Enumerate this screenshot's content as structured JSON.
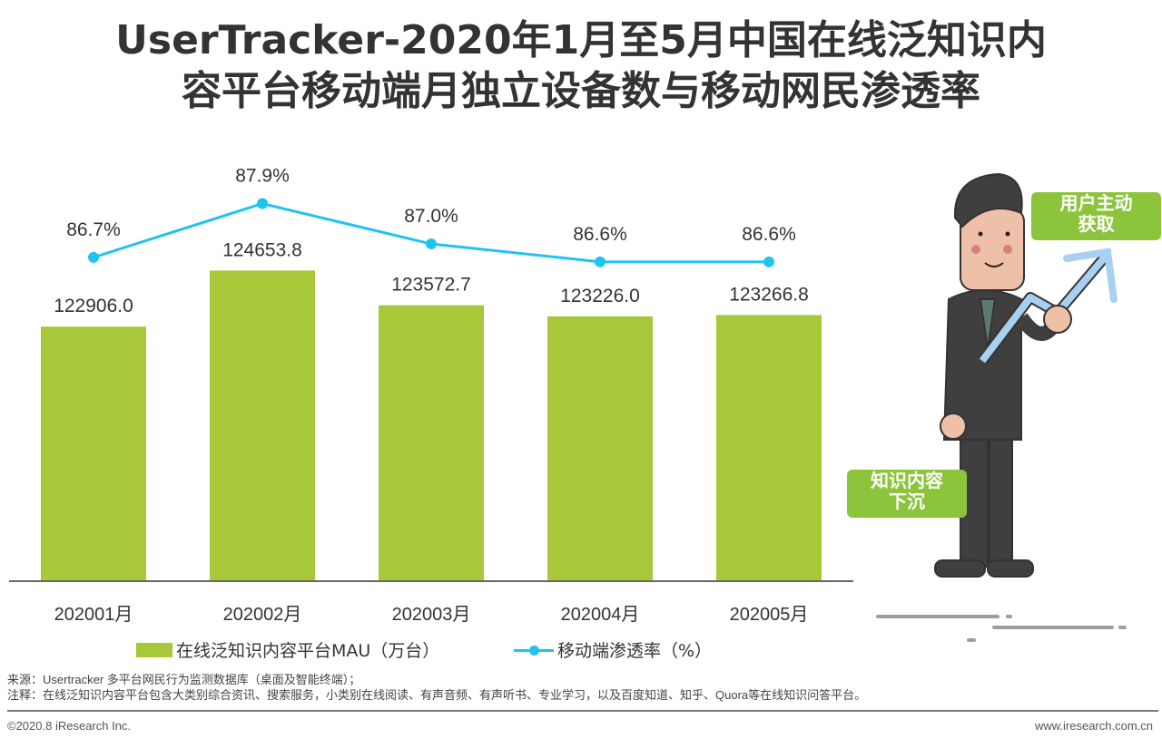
{
  "title_line1": "UserTracker-2020年1月至5月中国在线泛知识内",
  "title_line2": "容平台移动端月独立设备数与移动网民渗透率",
  "chart_data": {
    "type": "bar+line",
    "categories": [
      "202001月",
      "202002月",
      "202003月",
      "202004月",
      "202005月"
    ],
    "series": [
      {
        "name": "在线泛知识内容平台MAU（万台）",
        "type": "bar",
        "axis": "left",
        "color": "#a6c839",
        "values": [
          122906.0,
          124653.8,
          123572.7,
          123226.0,
          123266.8
        ],
        "labels": [
          "122906.0",
          "124653.8",
          "123572.7",
          "123226.0",
          "123266.8"
        ]
      },
      {
        "name": "移动端渗透率（%）",
        "type": "line",
        "axis": "right",
        "color": "#1fc4ee",
        "values": [
          86.7,
          87.9,
          87.0,
          86.6,
          86.6
        ],
        "labels": [
          "86.7%",
          "87.9%",
          "87.0%",
          "86.6%",
          "86.6%"
        ]
      }
    ],
    "ylim": [
      115000,
      128000
    ],
    "y2lim": [
      79.5,
      88.8
    ],
    "grid": false,
    "legend": "bottom"
  },
  "illustration": {
    "tag_top": [
      "用户主动",
      "获取"
    ],
    "tag_bottom": [
      "知识内容",
      "下沉"
    ]
  },
  "notes": {
    "source": "来源：Usertracker 多平台网民行为监测数据库（桌面及智能终端）；",
    "remark": "注释：在线泛知识内容平台包含大类别综合资讯、搜索服务，小类别在线阅读、有声音频、有声听书、专业学习，以及百度知道、知乎、Quora等在线知识问答平台。"
  },
  "footer": {
    "copyright": "©2020.8 iResearch Inc.",
    "url": "www.iresearch.com.cn"
  }
}
